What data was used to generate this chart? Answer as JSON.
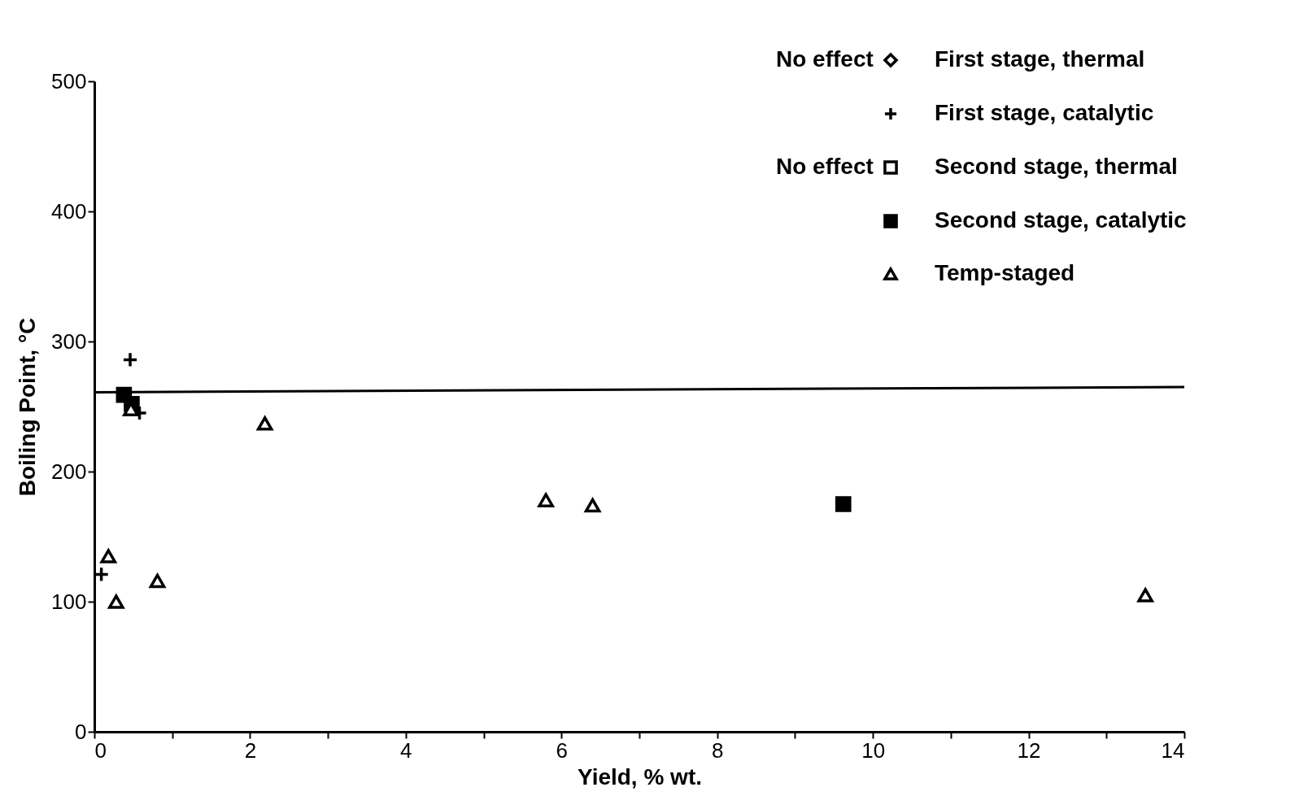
{
  "chart_data": {
    "type": "scatter",
    "xlabel": "Yield, % wt.",
    "ylabel": "Boiling Point, °C",
    "xlim": [
      0,
      14
    ],
    "ylim": [
      0,
      500
    ],
    "xticks": [
      0,
      {
        "value": 1,
        "label": null
      },
      2,
      {
        "value": 3,
        "label": null
      },
      4,
      {
        "value": 5,
        "label": null
      },
      6,
      {
        "value": 7,
        "label": null
      },
      8,
      {
        "value": 9,
        "label": null
      },
      10,
      {
        "value": 11,
        "label": null
      },
      12,
      {
        "value": 13,
        "label": null
      },
      14
    ],
    "yticks": [
      0,
      100,
      200,
      300,
      400,
      500
    ],
    "grid": false,
    "legend": "top right",
    "annotations": [
      "No effect",
      "No effect"
    ],
    "series": [
      {
        "name": "First stage, thermal",
        "color": "#000000",
        "marker": "diamond"
      },
      {
        "name": "First stage, catalytic",
        "color": "#000000",
        "marker": "cross",
        "x": [
          0.46,
          0.58,
          0.09
        ],
        "values": [
          286,
          245,
          121
        ]
      },
      {
        "name": "Second stage, thermal",
        "color": "#000000",
        "marker": "square-open"
      },
      {
        "name": "Second stage, catalytic",
        "color": "#000000",
        "marker": "square",
        "x": [
          0.38,
          0.48,
          9.62
        ],
        "values": [
          259,
          252,
          175
        ]
      },
      {
        "name": "Temp-staged",
        "color": "#000000",
        "marker": "triangle",
        "x": [
          0.18,
          0.28,
          0.81,
          2.19,
          5.8,
          6.4,
          13.5,
          0.47
        ],
        "values": [
          135,
          100,
          116,
          237,
          178,
          174,
          105,
          248
        ]
      },
      {
        "type": "line",
        "color": "#000000",
        "x": [
          0,
          14
        ],
        "values": [
          261,
          265
        ]
      }
    ]
  }
}
